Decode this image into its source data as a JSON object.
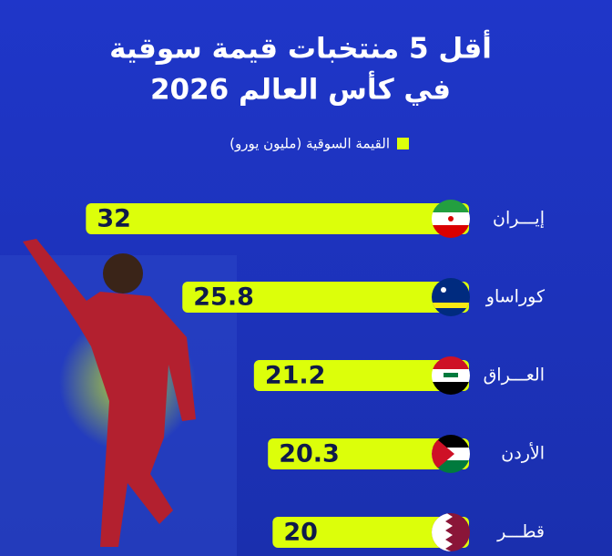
{
  "chart_data": {
    "type": "hbar",
    "title": "أقل 5 منتخبات قيمة سوقية",
    "subtitle": "في كأس العالم 2026",
    "categories": [
      "إيـــران",
      "كوراساو",
      "العـــراق",
      "الأردن",
      "قطـــر"
    ],
    "series": [
      {
        "name": "القيمة السوقية (مليون يورو)",
        "color": "#dcff0a",
        "values": [
          32,
          25.8,
          21.2,
          20.3,
          20
        ]
      }
    ],
    "xlim": [
      0,
      36
    ]
  }
}
